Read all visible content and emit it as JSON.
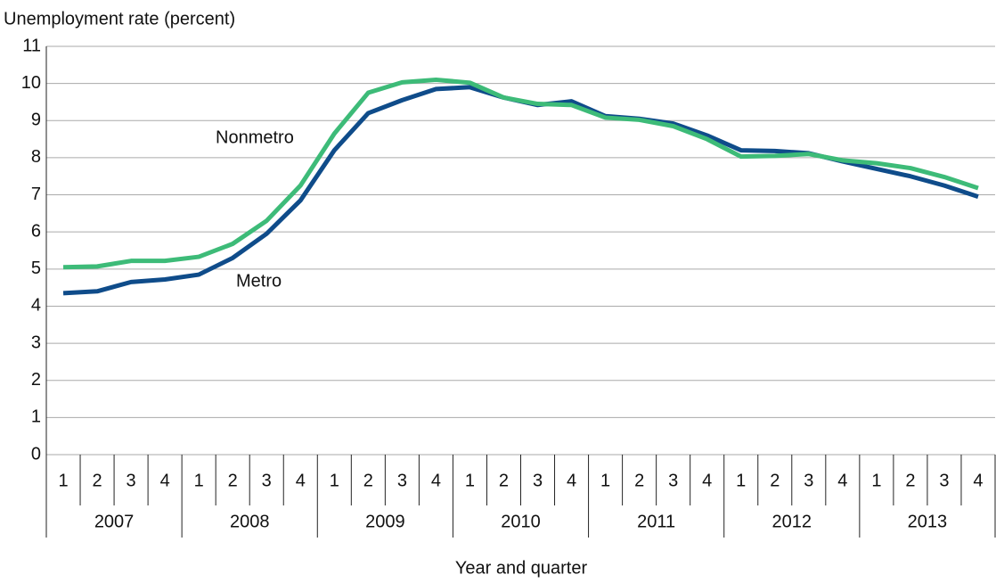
{
  "chart_data": {
    "type": "line",
    "y_label": "Unemployment rate (percent)",
    "x_label": "Year and quarter",
    "categories": [
      "1",
      "2",
      "3",
      "4",
      "1",
      "2",
      "3",
      "4",
      "1",
      "2",
      "3",
      "4",
      "1",
      "2",
      "3",
      "4",
      "1",
      "2",
      "3",
      "4",
      "1",
      "2",
      "3",
      "4",
      "1",
      "2",
      "3",
      "4"
    ],
    "years": [
      "2007",
      "2008",
      "2009",
      "2010",
      "2011",
      "2012",
      "2013"
    ],
    "series": [
      {
        "name": "Metro",
        "color": "#0f4c8a",
        "values": [
          4.35,
          4.4,
          4.65,
          4.72,
          4.85,
          5.3,
          5.95,
          6.85,
          8.2,
          9.2,
          9.55,
          9.85,
          9.9,
          9.62,
          9.42,
          9.52,
          9.12,
          9.05,
          8.92,
          8.6,
          8.2,
          8.18,
          8.12,
          7.9,
          7.7,
          7.5,
          7.25,
          6.95
        ]
      },
      {
        "name": "Nonmetro",
        "color": "#3dbb78",
        "values": [
          5.05,
          5.07,
          5.22,
          5.22,
          5.33,
          5.68,
          6.3,
          7.25,
          8.65,
          9.75,
          10.03,
          10.1,
          10.02,
          9.62,
          9.45,
          9.42,
          9.08,
          9.02,
          8.85,
          8.5,
          8.03,
          8.05,
          8.1,
          7.93,
          7.85,
          7.72,
          7.48,
          7.18
        ]
      }
    ],
    "ylim": [
      0,
      11
    ],
    "yticks": [
      0,
      1,
      2,
      3,
      4,
      5,
      6,
      7,
      8,
      9,
      10,
      11
    ],
    "grid": true
  }
}
